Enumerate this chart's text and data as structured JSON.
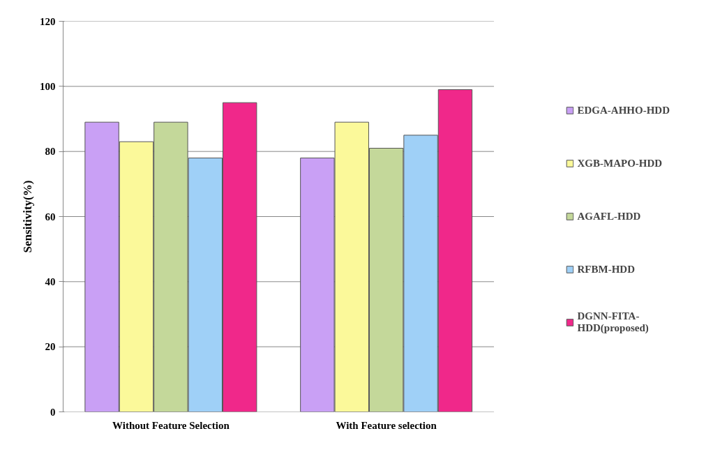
{
  "chart_data": {
    "type": "bar",
    "ylabel": "Sensitivity(%)",
    "categories": [
      "Without Feature Selection",
      "With Feature selection"
    ],
    "series": [
      {
        "name": "EDGA-AHHO-HDD",
        "color": "#c9a0f5",
        "values": [
          89,
          78
        ]
      },
      {
        "name": "XGB-MAPO-HDD",
        "color": "#fbf99a",
        "values": [
          83,
          89
        ]
      },
      {
        "name": "AGAFL-HDD",
        "color": "#c4d89a",
        "values": [
          89,
          81
        ]
      },
      {
        "name": "RFBM-HDD",
        "color": "#9fd0f7",
        "values": [
          78,
          85
        ]
      },
      {
        "name": "DGNN-FITA-HDD(proposed)",
        "color": "#f0288a",
        "values": [
          95,
          99
        ]
      }
    ],
    "ylim": [
      0,
      120
    ],
    "yticks": [
      0,
      20,
      40,
      60,
      80,
      100,
      120
    ],
    "grid": "y",
    "legend": "right"
  }
}
